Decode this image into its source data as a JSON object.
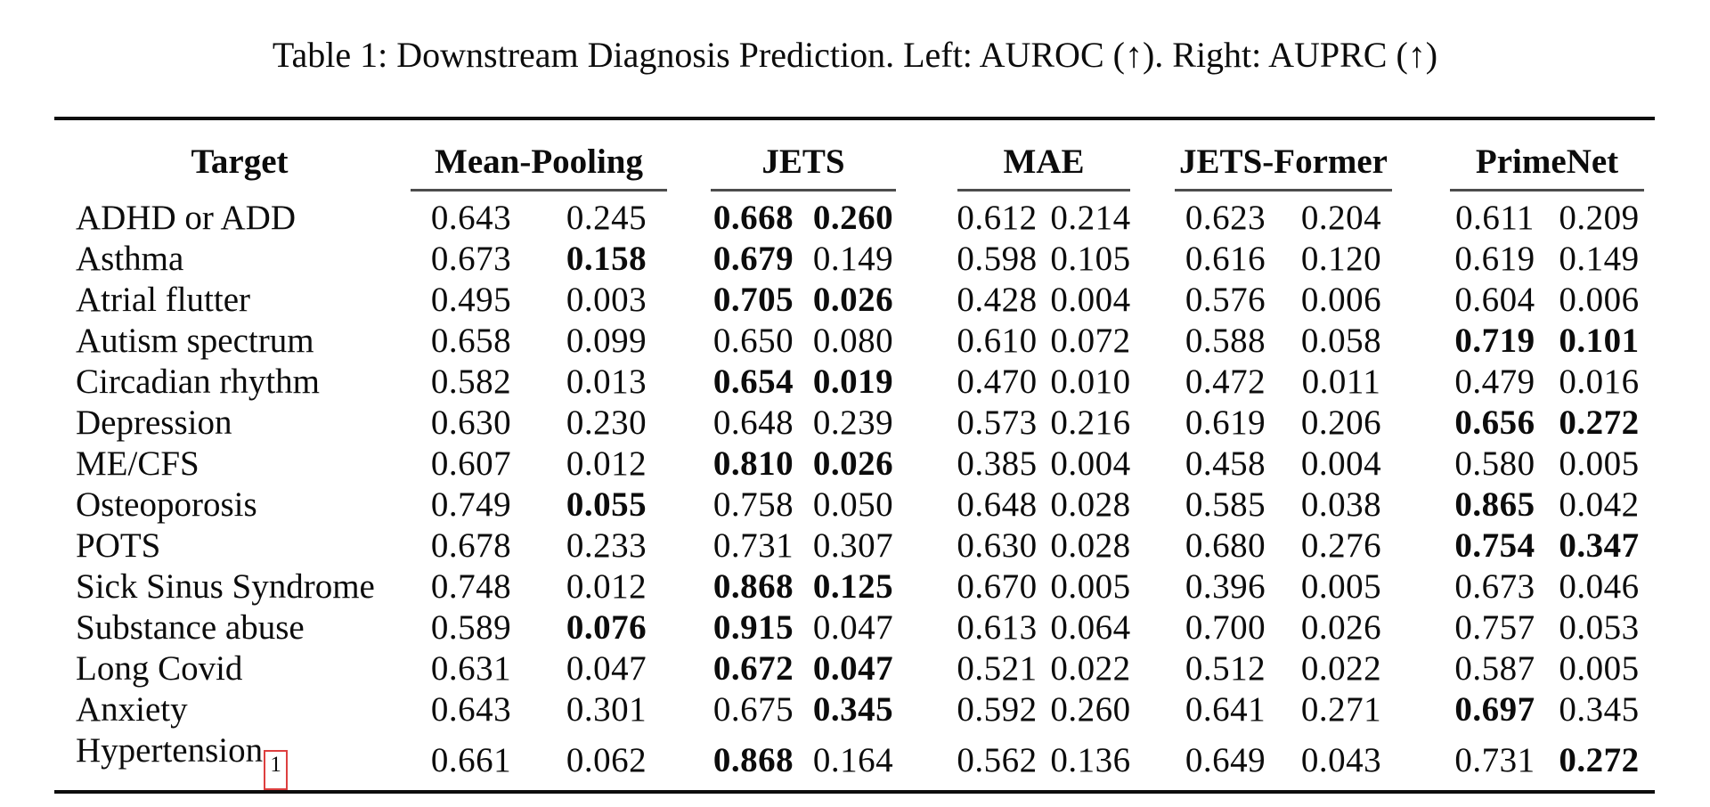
{
  "caption": "Table 1: Downstream Diagnosis Prediction. Left: AUROC (↑). Right: AUPRC (↑)",
  "table": {
    "target_header": "Target",
    "group_headers": [
      "Mean-Pooling",
      "JETS",
      "MAE",
      "JETS-Former",
      "PrimeNet"
    ],
    "metrics_per_group": [
      "AUROC",
      "AUPRC"
    ],
    "values_convention": "rows[].values = flat pairs [value, bold_flag] ordered AUROC,AUPRC for each method in group_headers order; bold marks best score",
    "accent_colors": {
      "footnote_link_box": "#dd3f3f",
      "rule": "#0d0d0d",
      "group_underline": "#4d4d4d"
    },
    "rows": [
      {
        "target": "ADHD or ADD",
        "footnote": "",
        "values": [
          [
            "0.643",
            0
          ],
          [
            "0.245",
            0
          ],
          [
            "0.668",
            1
          ],
          [
            "0.260",
            1
          ],
          [
            "0.612",
            0
          ],
          [
            "0.214",
            0
          ],
          [
            "0.623",
            0
          ],
          [
            "0.204",
            0
          ],
          [
            "0.611",
            0
          ],
          [
            "0.209",
            0
          ]
        ]
      },
      {
        "target": "Asthma",
        "footnote": "",
        "values": [
          [
            "0.673",
            0
          ],
          [
            "0.158",
            1
          ],
          [
            "0.679",
            1
          ],
          [
            "0.149",
            0
          ],
          [
            "0.598",
            0
          ],
          [
            "0.105",
            0
          ],
          [
            "0.616",
            0
          ],
          [
            "0.120",
            0
          ],
          [
            "0.619",
            0
          ],
          [
            "0.149",
            0
          ]
        ]
      },
      {
        "target": "Atrial flutter",
        "footnote": "",
        "values": [
          [
            "0.495",
            0
          ],
          [
            "0.003",
            0
          ],
          [
            "0.705",
            1
          ],
          [
            "0.026",
            1
          ],
          [
            "0.428",
            0
          ],
          [
            "0.004",
            0
          ],
          [
            "0.576",
            0
          ],
          [
            "0.006",
            0
          ],
          [
            "0.604",
            0
          ],
          [
            "0.006",
            0
          ]
        ]
      },
      {
        "target": "Autism spectrum",
        "footnote": "",
        "values": [
          [
            "0.658",
            0
          ],
          [
            "0.099",
            0
          ],
          [
            "0.650",
            0
          ],
          [
            "0.080",
            0
          ],
          [
            "0.610",
            0
          ],
          [
            "0.072",
            0
          ],
          [
            "0.588",
            0
          ],
          [
            "0.058",
            0
          ],
          [
            "0.719",
            1
          ],
          [
            "0.101",
            1
          ]
        ]
      },
      {
        "target": "Circadian rhythm",
        "footnote": "",
        "values": [
          [
            "0.582",
            0
          ],
          [
            "0.013",
            0
          ],
          [
            "0.654",
            1
          ],
          [
            "0.019",
            1
          ],
          [
            "0.470",
            0
          ],
          [
            "0.010",
            0
          ],
          [
            "0.472",
            0
          ],
          [
            "0.011",
            0
          ],
          [
            "0.479",
            0
          ],
          [
            "0.016",
            0
          ]
        ]
      },
      {
        "target": "Depression",
        "footnote": "",
        "values": [
          [
            "0.630",
            0
          ],
          [
            "0.230",
            0
          ],
          [
            "0.648",
            0
          ],
          [
            "0.239",
            0
          ],
          [
            "0.573",
            0
          ],
          [
            "0.216",
            0
          ],
          [
            "0.619",
            0
          ],
          [
            "0.206",
            0
          ],
          [
            "0.656",
            1
          ],
          [
            "0.272",
            1
          ]
        ]
      },
      {
        "target": "ME/CFS",
        "footnote": "",
        "values": [
          [
            "0.607",
            0
          ],
          [
            "0.012",
            0
          ],
          [
            "0.810",
            1
          ],
          [
            "0.026",
            1
          ],
          [
            "0.385",
            0
          ],
          [
            "0.004",
            0
          ],
          [
            "0.458",
            0
          ],
          [
            "0.004",
            0
          ],
          [
            "0.580",
            0
          ],
          [
            "0.005",
            0
          ]
        ]
      },
      {
        "target": "Osteoporosis",
        "footnote": "",
        "values": [
          [
            "0.749",
            0
          ],
          [
            "0.055",
            1
          ],
          [
            "0.758",
            0
          ],
          [
            "0.050",
            0
          ],
          [
            "0.648",
            0
          ],
          [
            "0.028",
            0
          ],
          [
            "0.585",
            0
          ],
          [
            "0.038",
            0
          ],
          [
            "0.865",
            1
          ],
          [
            "0.042",
            0
          ]
        ]
      },
      {
        "target": "POTS",
        "footnote": "",
        "values": [
          [
            "0.678",
            0
          ],
          [
            "0.233",
            0
          ],
          [
            "0.731",
            0
          ],
          [
            "0.307",
            0
          ],
          [
            "0.630",
            0
          ],
          [
            "0.028",
            0
          ],
          [
            "0.680",
            0
          ],
          [
            "0.276",
            0
          ],
          [
            "0.754",
            1
          ],
          [
            "0.347",
            1
          ]
        ]
      },
      {
        "target": "Sick Sinus Syndrome",
        "footnote": "",
        "values": [
          [
            "0.748",
            0
          ],
          [
            "0.012",
            0
          ],
          [
            "0.868",
            1
          ],
          [
            "0.125",
            1
          ],
          [
            "0.670",
            0
          ],
          [
            "0.005",
            0
          ],
          [
            "0.396",
            0
          ],
          [
            "0.005",
            0
          ],
          [
            "0.673",
            0
          ],
          [
            "0.046",
            0
          ]
        ]
      },
      {
        "target": "Substance abuse",
        "footnote": "",
        "values": [
          [
            "0.589",
            0
          ],
          [
            "0.076",
            1
          ],
          [
            "0.915",
            1
          ],
          [
            "0.047",
            0
          ],
          [
            "0.613",
            0
          ],
          [
            "0.064",
            0
          ],
          [
            "0.700",
            0
          ],
          [
            "0.026",
            0
          ],
          [
            "0.757",
            0
          ],
          [
            "0.053",
            0
          ]
        ]
      },
      {
        "target": "Long Covid",
        "footnote": "",
        "values": [
          [
            "0.631",
            0
          ],
          [
            "0.047",
            0
          ],
          [
            "0.672",
            1
          ],
          [
            "0.047",
            1
          ],
          [
            "0.521",
            0
          ],
          [
            "0.022",
            0
          ],
          [
            "0.512",
            0
          ],
          [
            "0.022",
            0
          ],
          [
            "0.587",
            0
          ],
          [
            "0.005",
            0
          ]
        ]
      },
      {
        "target": "Anxiety",
        "footnote": "",
        "values": [
          [
            "0.643",
            0
          ],
          [
            "0.301",
            0
          ],
          [
            "0.675",
            0
          ],
          [
            "0.345",
            1
          ],
          [
            "0.592",
            0
          ],
          [
            "0.260",
            0
          ],
          [
            "0.641",
            0
          ],
          [
            "0.271",
            0
          ],
          [
            "0.697",
            1
          ],
          [
            "0.345",
            0
          ]
        ]
      },
      {
        "target": "Hypertension",
        "footnote": "1",
        "values": [
          [
            "0.661",
            0
          ],
          [
            "0.062",
            0
          ],
          [
            "0.868",
            1
          ],
          [
            "0.164",
            0
          ],
          [
            "0.562",
            0
          ],
          [
            "0.136",
            0
          ],
          [
            "0.649",
            0
          ],
          [
            "0.043",
            0
          ],
          [
            "0.731",
            0
          ],
          [
            "0.272",
            1
          ]
        ]
      }
    ]
  }
}
